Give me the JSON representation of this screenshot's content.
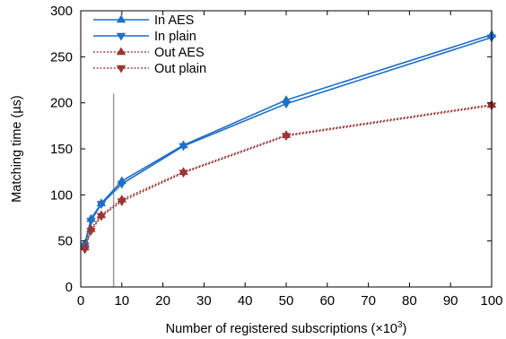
{
  "chart_data": {
    "type": "line",
    "xlabel": "Number of registered subscriptions (×10",
    "xlabel_sup": "3",
    "xlabel_close": ")",
    "ylabel": "Matching time (µs)",
    "xlim": [
      0,
      100
    ],
    "ylim": [
      0,
      300
    ],
    "x_ticks": [
      0,
      10,
      20,
      30,
      40,
      50,
      60,
      70,
      80,
      90,
      100
    ],
    "x_tick_labels": [
      "0",
      "10",
      "20",
      "30",
      "40",
      "50",
      "60",
      "70",
      "80",
      "90",
      "100"
    ],
    "y_ticks": [
      0,
      50,
      100,
      150,
      200,
      250,
      300
    ],
    "y_tick_labels": [
      "0",
      "50",
      "100",
      "150",
      "200",
      "250",
      "300"
    ],
    "grid": false,
    "legend_position": "top-left",
    "vertical_reference_line_x": 8,
    "series": [
      {
        "name": "In AES",
        "color": "#1f6fc5",
        "line_style": "solid",
        "marker": "triangle-up",
        "x": [
          1,
          2.5,
          5,
          10,
          25,
          50,
          100
        ],
        "y": [
          47,
          74,
          91,
          115,
          154,
          203,
          274
        ]
      },
      {
        "name": "In plain",
        "color": "#1f6fc5",
        "line_style": "solid",
        "marker": "triangle-down",
        "x": [
          1,
          2.5,
          5,
          10,
          25,
          50,
          100
        ],
        "y": [
          45,
          72,
          90,
          112,
          153,
          199,
          271
        ]
      },
      {
        "name": "Out AES",
        "color": "#9c3535",
        "line_style": "dotted",
        "marker": "triangle-up",
        "x": [
          1,
          2.5,
          5,
          10,
          25,
          50,
          100
        ],
        "y": [
          43,
          63,
          78,
          95,
          125,
          165,
          198
        ]
      },
      {
        "name": "Out plain",
        "color": "#9c3535",
        "line_style": "dotted",
        "marker": "triangle-down",
        "x": [
          1,
          2.5,
          5,
          10,
          25,
          50,
          100
        ],
        "y": [
          41,
          61,
          77,
          93,
          124,
          164,
          197
        ]
      }
    ]
  }
}
